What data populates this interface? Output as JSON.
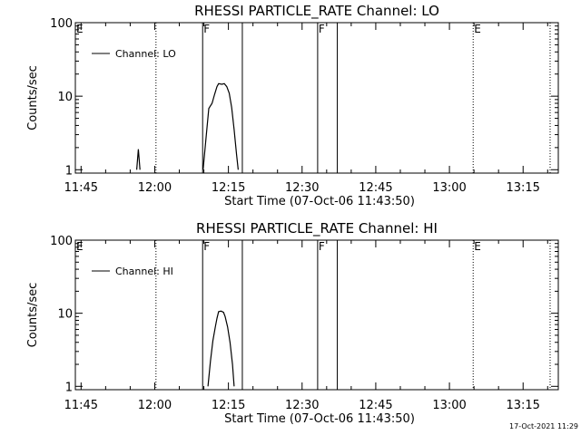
{
  "chart_data": [
    {
      "type": "line",
      "title": "RHESSI PARTICLE_RATE Channel: LO",
      "xlabel": "Start Time (07-Oct-06 11:43:50)",
      "ylabel": "Counts/sec",
      "yscale": "log",
      "ylim": [
        0.9,
        100
      ],
      "yticks": [
        1,
        10,
        100
      ],
      "ytick_labels": [
        "1",
        "10",
        "100"
      ],
      "xlim": [
        "11:43:50",
        "13:22:10"
      ],
      "xticks": [
        "11:45",
        "12:00",
        "12:15",
        "12:30",
        "12:45",
        "13:00",
        "13:15"
      ],
      "legend": {
        "position": "top-left",
        "label": "Channel: LO"
      },
      "series": [
        {
          "name": "Channel: LO",
          "segments": [
            {
              "x": [
                "11:56:20",
                "11:56:40",
                "11:57:00"
              ],
              "y": [
                1,
                1.9,
                1
              ]
            },
            {
              "x": [
                "12:09:50",
                "12:10:30",
                "12:11:00",
                "12:11:40",
                "12:12:10",
                "12:12:40",
                "12:13:00",
                "12:13:40",
                "12:14:10",
                "12:14:40",
                "12:15:10",
                "12:15:40",
                "12:16:10",
                "12:16:40",
                "12:17:00"
              ],
              "y": [
                1,
                3,
                6.8,
                8,
                10.5,
                13.5,
                14.8,
                14.5,
                14.8,
                13.5,
                11,
                7,
                3.5,
                1.6,
                1
              ]
            }
          ]
        }
      ],
      "vlines": [
        {
          "x": "12:00:15",
          "style": "dotted"
        },
        {
          "x": "12:09:45",
          "style": "solid",
          "label": "F"
        },
        {
          "x": "12:17:50",
          "style": "solid"
        },
        {
          "x": "12:33:10",
          "style": "solid",
          "label": "F"
        },
        {
          "x": "12:37:10",
          "style": "solid"
        },
        {
          "x": "13:04:50",
          "style": "dotted",
          "label": "E"
        },
        {
          "x": "13:20:30",
          "style": "dotted"
        }
      ],
      "corner_label": "E"
    },
    {
      "type": "line",
      "title": "RHESSI PARTICLE_RATE Channel: HI",
      "xlabel": "Start Time (07-Oct-06 11:43:50)",
      "ylabel": "Counts/sec",
      "yscale": "log",
      "ylim": [
        0.9,
        100
      ],
      "yticks": [
        1,
        10,
        100
      ],
      "ytick_labels": [
        "1",
        "10",
        "100"
      ],
      "xlim": [
        "11:43:50",
        "13:22:10"
      ],
      "xticks": [
        "11:45",
        "12:00",
        "12:15",
        "12:30",
        "12:45",
        "13:00",
        "13:15"
      ],
      "legend": {
        "position": "top-left",
        "label": "Channel: HI"
      },
      "series": [
        {
          "name": "Channel: HI",
          "segments": [
            {
              "x": [
                "12:10:50",
                "12:11:20",
                "12:11:50",
                "12:12:20",
                "12:12:40",
                "12:13:00",
                "12:13:30",
                "12:14:00",
                "12:14:20",
                "12:14:50",
                "12:15:20",
                "12:15:50",
                "12:16:10"
              ],
              "y": [
                1,
                2.2,
                4.2,
                6.5,
                8.5,
                10.5,
                10.7,
                10.3,
                9,
                6.5,
                4,
                2,
                1
              ]
            }
          ]
        }
      ],
      "vlines": [
        {
          "x": "12:00:15",
          "style": "dotted"
        },
        {
          "x": "12:09:45",
          "style": "solid",
          "label": "F"
        },
        {
          "x": "12:17:50",
          "style": "solid"
        },
        {
          "x": "12:33:10",
          "style": "solid",
          "label": "F"
        },
        {
          "x": "12:37:10",
          "style": "solid"
        },
        {
          "x": "13:04:50",
          "style": "dotted",
          "label": "E"
        },
        {
          "x": "13:20:30",
          "style": "dotted"
        }
      ],
      "corner_label": "E"
    }
  ],
  "footer": {
    "timestamp": "17-Oct-2021 11:29"
  }
}
